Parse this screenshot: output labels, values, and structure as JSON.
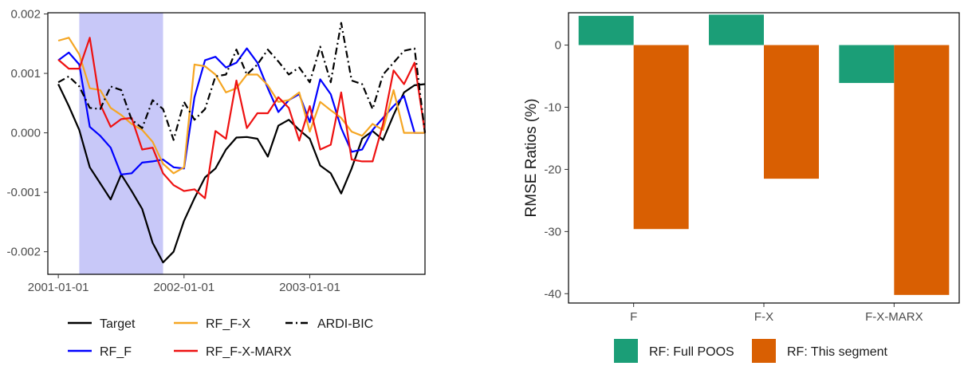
{
  "chart_data": [
    {
      "type": "line",
      "title": "",
      "xlabel": "",
      "ylabel": "",
      "x_tick_labels": [
        "2001-01-01",
        "2002-01-01",
        "2003-01-01"
      ],
      "y_tick_labels": [
        "0.002",
        "0.001",
        "0.000",
        "-0.001",
        "-0.002"
      ],
      "x_range": [
        "2000-12",
        "2003-12"
      ],
      "ylim": [
        -0.00238,
        0.00202
      ],
      "shaded_region": {
        "x_start": "2001-03",
        "x_end": "2001-11",
        "color": "#c8c8f8"
      },
      "grid": false,
      "legend_position": "bottom",
      "x": [
        "2001-01",
        "2001-02",
        "2001-03",
        "2001-04",
        "2001-05",
        "2001-06",
        "2001-07",
        "2001-08",
        "2001-09",
        "2001-10",
        "2001-11",
        "2001-12",
        "2002-01",
        "2002-02",
        "2002-03",
        "2002-04",
        "2002-05",
        "2002-06",
        "2002-07",
        "2002-08",
        "2002-09",
        "2002-10",
        "2002-11",
        "2002-12",
        "2003-01",
        "2003-02",
        "2003-03",
        "2003-04",
        "2003-05",
        "2003-06",
        "2003-07",
        "2003-08",
        "2003-09",
        "2003-10",
        "2003-11",
        "2003-12"
      ],
      "series": [
        {
          "name": "Target",
          "color": "#000000",
          "dash": "solid",
          "values": [
            0.00082,
            0.00045,
            5e-05,
            -0.00058,
            -0.00085,
            -0.00112,
            -0.0007,
            -0.00098,
            -0.00128,
            -0.00185,
            -0.00218,
            -0.002,
            -0.00148,
            -0.0011,
            -0.00075,
            -0.0006,
            -0.00028,
            -8e-05,
            -7e-05,
            -0.0001,
            -0.0004,
            0.00012,
            0.00022,
            5e-05,
            -0.0001,
            -0.00055,
            -0.00068,
            -0.00102,
            -0.0006,
            -0.0001,
            3e-05,
            -0.00012,
            0.0003,
            0.00068,
            0.0008,
            0.00082
          ]
        },
        {
          "name": "RF_F",
          "color": "#0000ff",
          "dash": "solid",
          "values": [
            0.00122,
            0.00135,
            0.00115,
            0.0001,
            -5e-05,
            -0.00025,
            -0.0007,
            -0.00068,
            -0.0005,
            -0.00048,
            -0.00045,
            -0.00058,
            -0.0006,
            0.0006,
            0.00122,
            0.00128,
            0.0011,
            0.00118,
            0.00142,
            0.00118,
            0.00075,
            0.00035,
            0.00055,
            0.00065,
            0.00018,
            0.0009,
            0.00065,
            8e-05,
            -0.00032,
            -0.00028,
            5e-05,
            0.00025,
            0.00045,
            0.00062,
            0.0,
            0.0
          ]
        },
        {
          "name": "RF_F-X",
          "color": "#f5a623",
          "dash": "solid",
          "values": [
            0.00155,
            0.0016,
            0.00132,
            0.00075,
            0.00072,
            0.00042,
            0.0003,
            0.00015,
            5e-05,
            -0.00015,
            -0.00052,
            -0.00068,
            -0.00058,
            0.00115,
            0.00112,
            0.00098,
            0.00068,
            0.00075,
            0.00098,
            0.00098,
            0.0008,
            0.00052,
            0.00055,
            0.00068,
            2e-05,
            0.00052,
            0.00038,
            0.00025,
            2e-05,
            -5e-05,
            0.00015,
            5e-05,
            0.00072,
            0.0,
            0.0,
            0.0
          ]
        },
        {
          "name": "RF_F-X-MARX",
          "color": "#ee1111",
          "dash": "solid",
          "values": [
            0.00123,
            0.00108,
            0.00108,
            0.0016,
            0.00048,
            0.0001,
            0.00023,
            0.00025,
            -0.00028,
            -0.00025,
            -0.00068,
            -0.00088,
            -0.00098,
            -0.00095,
            -0.0011,
            3e-05,
            -0.0001,
            0.00088,
            8e-05,
            0.00033,
            0.00033,
            0.0006,
            0.00042,
            -0.00013,
            0.00045,
            -0.00028,
            -0.0002,
            0.00068,
            -0.00045,
            -0.00048,
            -0.00048,
            0.00015,
            0.00105,
            0.00082,
            0.00118,
            0.0
          ]
        },
        {
          "name": "ARDI-BIC",
          "color": "#000000",
          "dash": "dashdot",
          "values": [
            0.00085,
            0.00095,
            0.00078,
            0.00042,
            0.0004,
            0.00078,
            0.00072,
            0.00022,
            8e-05,
            0.00055,
            0.0004,
            -0.00012,
            0.00052,
            0.00022,
            0.0004,
            0.00095,
            0.00098,
            0.0014,
            0.00098,
            0.00115,
            0.0014,
            0.0012,
            0.00098,
            0.0011,
            0.00085,
            0.00145,
            0.00085,
            0.00185,
            0.00088,
            0.00082,
            0.0004,
            0.00098,
            0.00118,
            0.00138,
            0.00142,
            0.0
          ]
        }
      ]
    },
    {
      "type": "bar",
      "title": "",
      "xlabel": "",
      "ylabel": "RMSE Ratios (%)",
      "categories": [
        "F",
        "F-X",
        "F-X-MARX"
      ],
      "ylim": [
        -41.5,
        5.2
      ],
      "y_ticks": [
        0,
        -10,
        -20,
        -30,
        -40
      ],
      "legend_position": "bottom",
      "series": [
        {
          "name": "RF: Full POOS",
          "color": "#1b9e77",
          "values": [
            4.7,
            4.9,
            -6.1
          ]
        },
        {
          "name": "RF: This segment",
          "color": "#d95f02",
          "values": [
            -29.6,
            -21.5,
            -40.2
          ]
        }
      ]
    }
  ]
}
